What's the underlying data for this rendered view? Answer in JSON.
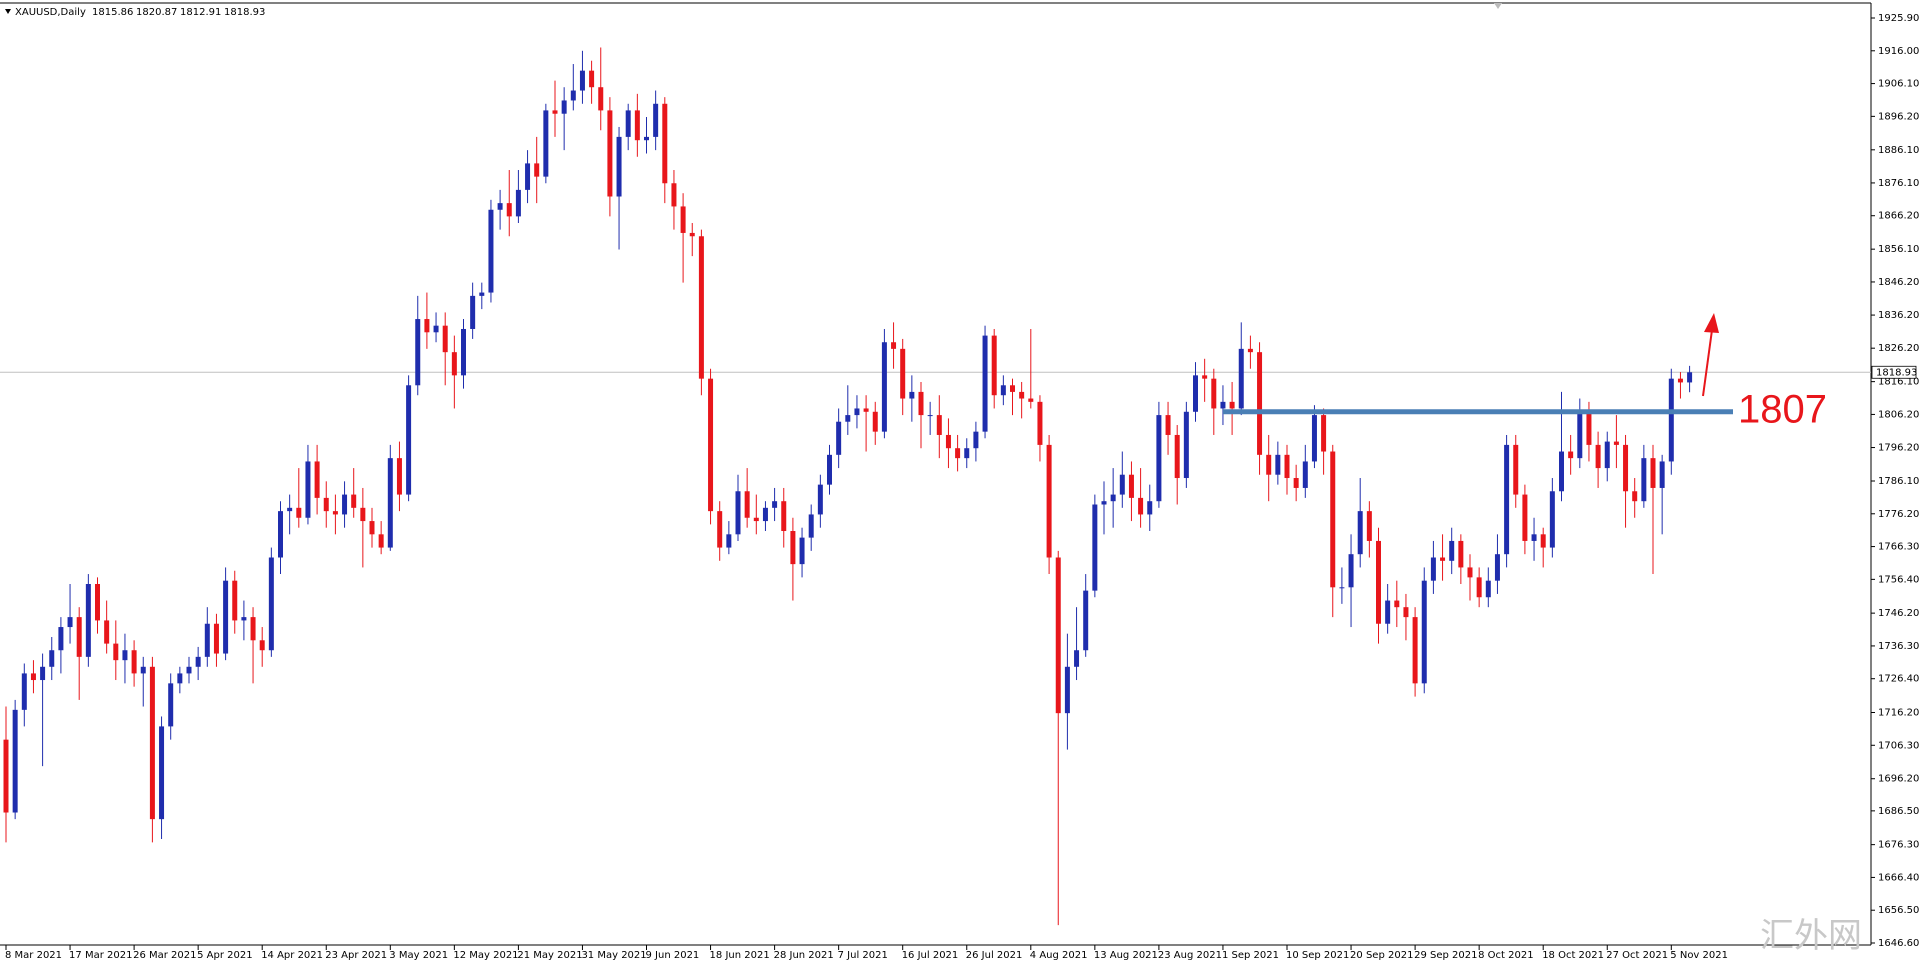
{
  "chart_data": {
    "type": "candlestick",
    "symbol": "XAUUSD,Daily",
    "up_color": "#1f2dad",
    "down_color": "#e8161b",
    "resistance_level": 1807,
    "resistance_color": "#4a7fb5",
    "arrow_color": "#e8161b",
    "watermark": "汇外网",
    "ylim": [
      1646.6,
      1925.9
    ],
    "yticks": [
      {
        "value": 1925.9,
        "label": "1925.90"
      },
      {
        "value": 1916.0,
        "label": "1916.00"
      },
      {
        "value": 1906.1,
        "label": "1906.10"
      },
      {
        "value": 1896.2,
        "label": "1896.20"
      },
      {
        "value": 1886.1,
        "label": "1886.10"
      },
      {
        "value": 1876.1,
        "label": "1876.10"
      },
      {
        "value": 1866.2,
        "label": "1866.20"
      },
      {
        "value": 1856.1,
        "label": "1856.10"
      },
      {
        "value": 1846.2,
        "label": "1846.20"
      },
      {
        "value": 1836.2,
        "label": "1836.20"
      },
      {
        "value": 1826.2,
        "label": "1826.20"
      },
      {
        "value": 1816.1,
        "label": "1816.10"
      },
      {
        "value": 1806.2,
        "label": "1806.20"
      },
      {
        "value": 1796.2,
        "label": "1796.20"
      },
      {
        "value": 1786.1,
        "label": "1786.10"
      },
      {
        "value": 1776.2,
        "label": "1776.20"
      },
      {
        "value": 1766.3,
        "label": "1766.30"
      },
      {
        "value": 1756.4,
        "label": "1756.40"
      },
      {
        "value": 1746.2,
        "label": "1746.20"
      },
      {
        "value": 1736.3,
        "label": "1736.30"
      },
      {
        "value": 1726.4,
        "label": "1726.40"
      },
      {
        "value": 1716.2,
        "label": "1716.20"
      },
      {
        "value": 1706.3,
        "label": "1706.30"
      },
      {
        "value": 1696.2,
        "label": "1696.20"
      },
      {
        "value": 1686.5,
        "label": "1686.50"
      },
      {
        "value": 1676.3,
        "label": "1676.30"
      },
      {
        "value": 1666.4,
        "label": "1666.40"
      },
      {
        "value": 1656.5,
        "label": "1656.50"
      },
      {
        "value": 1646.6,
        "label": "1646.60"
      }
    ],
    "categories": [
      "8 Mar 2021",
      null,
      null,
      null,
      null,
      null,
      null,
      "17 Mar 2021",
      null,
      null,
      null,
      null,
      null,
      null,
      "26 Mar 2021",
      null,
      null,
      null,
      null,
      null,
      null,
      "5 Apr 2021",
      null,
      null,
      null,
      null,
      null,
      null,
      "14 Apr 2021",
      null,
      null,
      null,
      null,
      null,
      null,
      "23 Apr 2021",
      null,
      null,
      null,
      null,
      null,
      null,
      "3 May 2021",
      null,
      null,
      null,
      null,
      null,
      null,
      "12 May 2021",
      null,
      null,
      null,
      null,
      null,
      null,
      "21 May 2021",
      null,
      null,
      null,
      null,
      null,
      null,
      "31 May 2021",
      null,
      null,
      null,
      null,
      null,
      null,
      "9 Jun 2021",
      null,
      null,
      null,
      null,
      null,
      null,
      "18 Jun 2021",
      null,
      null,
      null,
      null,
      null,
      null,
      "28 Jun 2021",
      null,
      null,
      null,
      null,
      null,
      null,
      "7 Jul 2021",
      null,
      null,
      null,
      null,
      null,
      null,
      "16 Jul 2021",
      null,
      null,
      null,
      null,
      null,
      null,
      "26 Jul 2021",
      null,
      null,
      null,
      null,
      null,
      null,
      "4 Aug 2021",
      null,
      null,
      null,
      null,
      null,
      null,
      "13 Aug 2021",
      null,
      null,
      null,
      null,
      null,
      null,
      "23 Aug 2021",
      null,
      null,
      null,
      null,
      null,
      null,
      "1 Sep 2021",
      null,
      null,
      null,
      null,
      null,
      null,
      "10 Sep 2021",
      null,
      null,
      null,
      null,
      null,
      null,
      "20 Sep 2021",
      null,
      null,
      null,
      null,
      null,
      null,
      "29 Sep 2021",
      null,
      null,
      null,
      null,
      null,
      null,
      "8 Oct 2021",
      null,
      null,
      null,
      null,
      null,
      null,
      "18 Oct 2021",
      null,
      null,
      null,
      null,
      null,
      null,
      "27 Oct 2021",
      null,
      null,
      null,
      null,
      null,
      null,
      "5 Nov 2021",
      null,
      null
    ],
    "ohlc": [
      [
        1708,
        1718,
        1677,
        1686
      ],
      [
        1686,
        1720,
        1684,
        1717
      ],
      [
        1717,
        1731,
        1712,
        1728
      ],
      [
        1728,
        1732,
        1722,
        1726
      ],
      [
        1726,
        1734,
        1700,
        1730
      ],
      [
        1730,
        1739,
        1726,
        1735
      ],
      [
        1735,
        1745,
        1728,
        1742
      ],
      [
        1742,
        1755,
        1737,
        1745
      ],
      [
        1745,
        1748,
        1720,
        1733
      ],
      [
        1733,
        1758,
        1730,
        1755
      ],
      [
        1755,
        1757,
        1740,
        1744
      ],
      [
        1744,
        1750,
        1734,
        1737
      ],
      [
        1737,
        1744,
        1726,
        1732
      ],
      [
        1732,
        1740,
        1725,
        1735
      ],
      [
        1735,
        1738,
        1724,
        1728
      ],
      [
        1728,
        1733,
        1718,
        1730
      ],
      [
        1730,
        1733,
        1677,
        1684
      ],
      [
        1684,
        1715,
        1678,
        1712
      ],
      [
        1712,
        1728,
        1708,
        1725
      ],
      [
        1725,
        1730,
        1722,
        1728
      ],
      [
        1728,
        1733,
        1725,
        1730
      ],
      [
        1730,
        1736,
        1726,
        1733
      ],
      [
        1733,
        1748,
        1730,
        1743
      ],
      [
        1743,
        1746,
        1730,
        1734
      ],
      [
        1734,
        1760,
        1732,
        1756
      ],
      [
        1756,
        1759,
        1740,
        1744
      ],
      [
        1744,
        1750,
        1738,
        1745
      ],
      [
        1745,
        1748,
        1725,
        1738
      ],
      [
        1738,
        1742,
        1730,
        1735
      ],
      [
        1735,
        1766,
        1733,
        1763
      ],
      [
        1763,
        1780,
        1758,
        1777
      ],
      [
        1777,
        1782,
        1770,
        1778
      ],
      [
        1778,
        1790,
        1772,
        1775
      ],
      [
        1775,
        1797,
        1773,
        1792
      ],
      [
        1792,
        1797,
        1776,
        1781
      ],
      [
        1781,
        1786,
        1772,
        1777
      ],
      [
        1777,
        1782,
        1770,
        1776
      ],
      [
        1776,
        1786,
        1772,
        1782
      ],
      [
        1782,
        1790,
        1775,
        1778
      ],
      [
        1778,
        1784,
        1760,
        1774
      ],
      [
        1774,
        1778,
        1766,
        1770
      ],
      [
        1770,
        1774,
        1764,
        1766
      ],
      [
        1766,
        1797,
        1765,
        1793
      ],
      [
        1793,
        1798,
        1777,
        1782
      ],
      [
        1782,
        1818,
        1780,
        1815
      ],
      [
        1815,
        1842,
        1812,
        1835
      ],
      [
        1835,
        1843,
        1826,
        1831
      ],
      [
        1831,
        1837,
        1828,
        1833
      ],
      [
        1833,
        1837,
        1815,
        1825
      ],
      [
        1825,
        1830,
        1808,
        1818
      ],
      [
        1818,
        1835,
        1814,
        1832
      ],
      [
        1832,
        1846,
        1829,
        1842
      ],
      [
        1842,
        1846,
        1838,
        1843
      ],
      [
        1843,
        1871,
        1840,
        1868
      ],
      [
        1868,
        1874,
        1862,
        1870
      ],
      [
        1870,
        1880,
        1860,
        1866
      ],
      [
        1866,
        1880,
        1864,
        1874
      ],
      [
        1874,
        1886,
        1870,
        1882
      ],
      [
        1882,
        1890,
        1870,
        1878
      ],
      [
        1878,
        1900,
        1876,
        1898
      ],
      [
        1898,
        1907,
        1890,
        1897
      ],
      [
        1897,
        1905,
        1886,
        1901
      ],
      [
        1901,
        1912,
        1898,
        1904
      ],
      [
        1904,
        1916,
        1900,
        1910
      ],
      [
        1910,
        1913,
        1900,
        1905
      ],
      [
        1905,
        1917,
        1892,
        1898
      ],
      [
        1898,
        1902,
        1866,
        1872
      ],
      [
        1872,
        1893,
        1856,
        1890
      ],
      [
        1890,
        1900,
        1886,
        1898
      ],
      [
        1898,
        1903,
        1884,
        1889
      ],
      [
        1889,
        1896,
        1885,
        1890
      ],
      [
        1890,
        1904,
        1886,
        1900
      ],
      [
        1900,
        1902,
        1870,
        1876
      ],
      [
        1876,
        1880,
        1862,
        1869
      ],
      [
        1869,
        1873,
        1846,
        1861
      ],
      [
        1861,
        1864,
        1854,
        1860
      ],
      [
        1860,
        1862,
        1812,
        1817
      ],
      [
        1817,
        1820,
        1773,
        1777
      ],
      [
        1777,
        1780,
        1762,
        1766
      ],
      [
        1766,
        1774,
        1764,
        1770
      ],
      [
        1770,
        1788,
        1768,
        1783
      ],
      [
        1783,
        1790,
        1772,
        1775
      ],
      [
        1775,
        1782,
        1770,
        1774
      ],
      [
        1774,
        1780,
        1771,
        1778
      ],
      [
        1778,
        1784,
        1774,
        1780
      ],
      [
        1780,
        1784,
        1766,
        1771
      ],
      [
        1771,
        1775,
        1750,
        1761
      ],
      [
        1761,
        1772,
        1757,
        1769
      ],
      [
        1769,
        1779,
        1765,
        1776
      ],
      [
        1776,
        1788,
        1772,
        1785
      ],
      [
        1785,
        1797,
        1782,
        1794
      ],
      [
        1794,
        1808,
        1790,
        1804
      ],
      [
        1804,
        1815,
        1800,
        1806
      ],
      [
        1806,
        1812,
        1802,
        1808
      ],
      [
        1808,
        1812,
        1795,
        1807
      ],
      [
        1807,
        1810,
        1797,
        1801
      ],
      [
        1801,
        1832,
        1799,
        1828
      ],
      [
        1828,
        1834,
        1820,
        1826
      ],
      [
        1826,
        1829,
        1806,
        1811
      ],
      [
        1811,
        1818,
        1804,
        1813
      ],
      [
        1813,
        1816,
        1796,
        1806
      ],
      [
        1806,
        1810,
        1800,
        1806
      ],
      [
        1806,
        1812,
        1793,
        1800
      ],
      [
        1800,
        1805,
        1790,
        1796
      ],
      [
        1796,
        1800,
        1789,
        1793
      ],
      [
        1793,
        1799,
        1790,
        1796
      ],
      [
        1796,
        1804,
        1792,
        1801
      ],
      [
        1801,
        1833,
        1799,
        1830
      ],
      [
        1830,
        1832,
        1808,
        1812
      ],
      [
        1812,
        1818,
        1809,
        1815
      ],
      [
        1815,
        1817,
        1806,
        1813
      ],
      [
        1813,
        1816,
        1805,
        1811
      ],
      [
        1811,
        1832,
        1808,
        1810
      ],
      [
        1810,
        1812,
        1792,
        1797
      ],
      [
        1797,
        1800,
        1758,
        1763
      ],
      [
        1763,
        1765,
        1652,
        1716
      ],
      [
        1716,
        1740,
        1705,
        1730
      ],
      [
        1730,
        1748,
        1726,
        1735
      ],
      [
        1735,
        1758,
        1733,
        1753
      ],
      [
        1753,
        1782,
        1751,
        1779
      ],
      [
        1779,
        1786,
        1770,
        1780
      ],
      [
        1780,
        1790,
        1772,
        1782
      ],
      [
        1782,
        1795,
        1778,
        1788
      ],
      [
        1788,
        1792,
        1774,
        1781
      ],
      [
        1781,
        1790,
        1772,
        1776
      ],
      [
        1776,
        1785,
        1771,
        1780
      ],
      [
        1780,
        1810,
        1778,
        1806
      ],
      [
        1806,
        1810,
        1794,
        1800
      ],
      [
        1800,
        1803,
        1779,
        1787
      ],
      [
        1787,
        1810,
        1784,
        1807
      ],
      [
        1807,
        1822,
        1804,
        1818
      ],
      [
        1818,
        1823,
        1810,
        1817
      ],
      [
        1817,
        1820,
        1800,
        1808
      ],
      [
        1808,
        1815,
        1803,
        1810
      ],
      [
        1810,
        1816,
        1800,
        1808
      ],
      [
        1808,
        1834,
        1806,
        1826
      ],
      [
        1826,
        1830,
        1820,
        1825
      ],
      [
        1825,
        1828,
        1788,
        1794
      ],
      [
        1794,
        1800,
        1780,
        1788
      ],
      [
        1788,
        1798,
        1785,
        1794
      ],
      [
        1794,
        1797,
        1782,
        1787
      ],
      [
        1787,
        1791,
        1780,
        1784
      ],
      [
        1784,
        1797,
        1781,
        1792
      ],
      [
        1792,
        1809,
        1790,
        1806
      ],
      [
        1806,
        1808,
        1788,
        1795
      ],
      [
        1795,
        1797,
        1745,
        1754
      ],
      [
        1754,
        1760,
        1749,
        1754
      ],
      [
        1754,
        1770,
        1742,
        1764
      ],
      [
        1764,
        1787,
        1760,
        1777
      ],
      [
        1777,
        1780,
        1763,
        1768
      ],
      [
        1768,
        1772,
        1737,
        1743
      ],
      [
        1743,
        1755,
        1740,
        1750
      ],
      [
        1750,
        1756,
        1742,
        1748
      ],
      [
        1748,
        1752,
        1738,
        1745
      ],
      [
        1745,
        1748,
        1721,
        1725
      ],
      [
        1725,
        1760,
        1722,
        1756
      ],
      [
        1756,
        1768,
        1752,
        1763
      ],
      [
        1763,
        1770,
        1756,
        1762
      ],
      [
        1762,
        1772,
        1758,
        1768
      ],
      [
        1768,
        1770,
        1755,
        1760
      ],
      [
        1760,
        1764,
        1750,
        1757
      ],
      [
        1757,
        1760,
        1748,
        1751
      ],
      [
        1751,
        1760,
        1748,
        1756
      ],
      [
        1756,
        1770,
        1752,
        1764
      ],
      [
        1764,
        1800,
        1760,
        1797
      ],
      [
        1797,
        1800,
        1778,
        1782
      ],
      [
        1782,
        1785,
        1764,
        1768
      ],
      [
        1768,
        1775,
        1762,
        1770
      ],
      [
        1770,
        1772,
        1760,
        1766
      ],
      [
        1766,
        1787,
        1763,
        1783
      ],
      [
        1783,
        1813,
        1780,
        1795
      ],
      [
        1795,
        1800,
        1788,
        1793
      ],
      [
        1793,
        1811,
        1790,
        1807
      ],
      [
        1807,
        1810,
        1792,
        1797
      ],
      [
        1797,
        1801,
        1784,
        1790
      ],
      [
        1790,
        1801,
        1786,
        1798
      ],
      [
        1798,
        1806,
        1790,
        1797
      ],
      [
        1797,
        1800,
        1772,
        1783
      ],
      [
        1783,
        1787,
        1775,
        1780
      ],
      [
        1780,
        1797,
        1778,
        1793
      ],
      [
        1793,
        1797,
        1758,
        1784
      ],
      [
        1784,
        1794,
        1770,
        1792
      ],
      [
        1792,
        1820,
        1788,
        1817
      ],
      [
        1817,
        1819,
        1811,
        1815.86
      ],
      [
        1815.86,
        1820.87,
        1812.91,
        1818.93
      ]
    ]
  }
}
